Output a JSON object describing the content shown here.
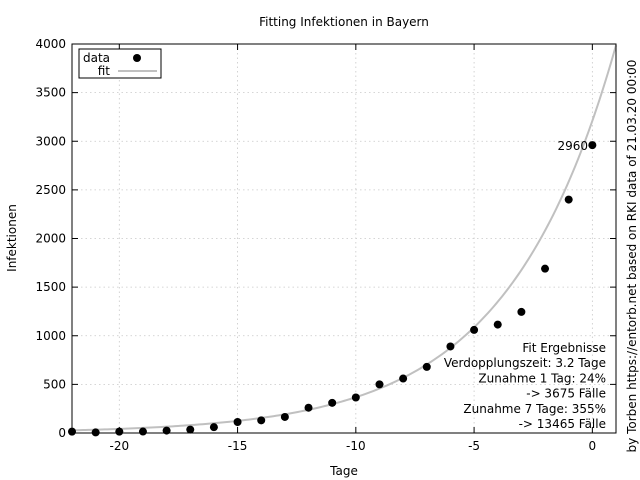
{
  "chart_data": {
    "type": "scatter",
    "title": "Fitting Infektionen in Bayern",
    "xlabel": "Tage",
    "ylabel": "Infektionen",
    "side_label": "by Torben https://entorb.net based on RKI data of 21.03.20 00:00",
    "xlim": [
      -22,
      1
    ],
    "ylim": [
      0,
      4000
    ],
    "x_ticks": [
      -20,
      -15,
      -10,
      -5,
      0
    ],
    "y_ticks": [
      0,
      500,
      1000,
      1500,
      2000,
      2500,
      3000,
      3500,
      4000
    ],
    "grid": true,
    "legend_position": "top-left",
    "legend": [
      "data",
      "fit"
    ],
    "series": [
      {
        "name": "data",
        "style": "points",
        "color": "#000000",
        "x": [
          -22,
          -21,
          -20,
          -19,
          -18,
          -17,
          -16,
          -15,
          -14,
          -13,
          -12,
          -11,
          -10,
          -9,
          -8,
          -7,
          -6,
          -5,
          -4,
          -3,
          -2,
          -1,
          0
        ],
        "y": [
          14,
          6,
          14,
          15,
          25,
          35,
          60,
          113,
          130,
          165,
          260,
          310,
          365,
          500,
          560,
          680,
          890,
          1060,
          1115,
          1245,
          1690,
          2400,
          2960
        ]
      },
      {
        "name": "fit",
        "style": "line",
        "color": "#c0c0c0",
        "model": "exponential",
        "a": 3210,
        "doubling_days": 3.2
      }
    ],
    "annotations": {
      "last_point_label": "2960",
      "fit_results": [
        "Fit Ergebnisse",
        "Verdopplungszeit: 3.2 Tage",
        "Zunahme 1 Tag: 24%",
        "-> 3675 Fälle",
        "Zunahme 7 Tage: 355%",
        "-> 13465 Fälle"
      ]
    }
  }
}
